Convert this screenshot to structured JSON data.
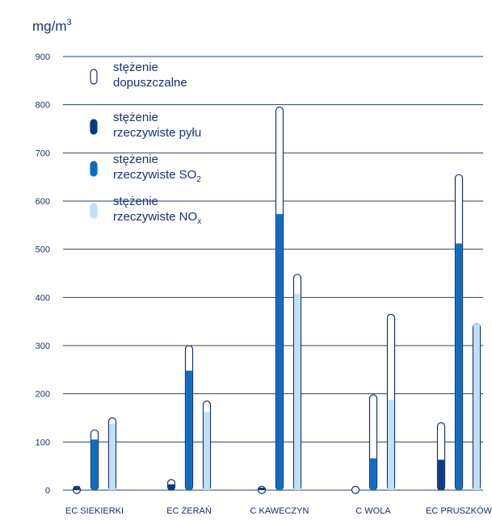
{
  "chart_data": {
    "type": "bar",
    "unit_label": "mg/m",
    "unit_sup": "3",
    "ylim": [
      0,
      900
    ],
    "yticks": [
      0,
      100,
      200,
      300,
      400,
      500,
      600,
      700,
      800,
      900
    ],
    "categories": [
      "EC SIEKIERKI",
      "EC ŻERAŃ",
      "C KAWECZYN",
      "C WOLA",
      "EC PRUSZKÓW"
    ],
    "series": [
      {
        "key": "pyl",
        "color": "#0d3a80",
        "name_line1": "stężenie",
        "name_line2": "rzeczywiste pyłu",
        "name_sub": "",
        "allowed": [
          8,
          22,
          8,
          8,
          140
        ],
        "actual": [
          8,
          12,
          5,
          0,
          63
        ]
      },
      {
        "key": "so2",
        "color": "#0c6ec0",
        "name_line1": "stężenie",
        "name_line2": "rzeczywiste SO",
        "name_sub": "2",
        "allowed": [
          125,
          300,
          795,
          198,
          655
        ],
        "actual": [
          105,
          248,
          573,
          66,
          512
        ]
      },
      {
        "key": "nox",
        "color": "#bfe0f5",
        "name_line1": "stężenie",
        "name_line2": "rzeczywiste NO",
        "name_sub": "x",
        "allowed": [
          150,
          185,
          448,
          365,
          345
        ],
        "actual": [
          138,
          162,
          407,
          187,
          345
        ]
      }
    ],
    "allowed_legend_line1": "stężenie",
    "allowed_legend_line2": "dopuszczalne",
    "grid": true,
    "legend_position": "top-left"
  }
}
